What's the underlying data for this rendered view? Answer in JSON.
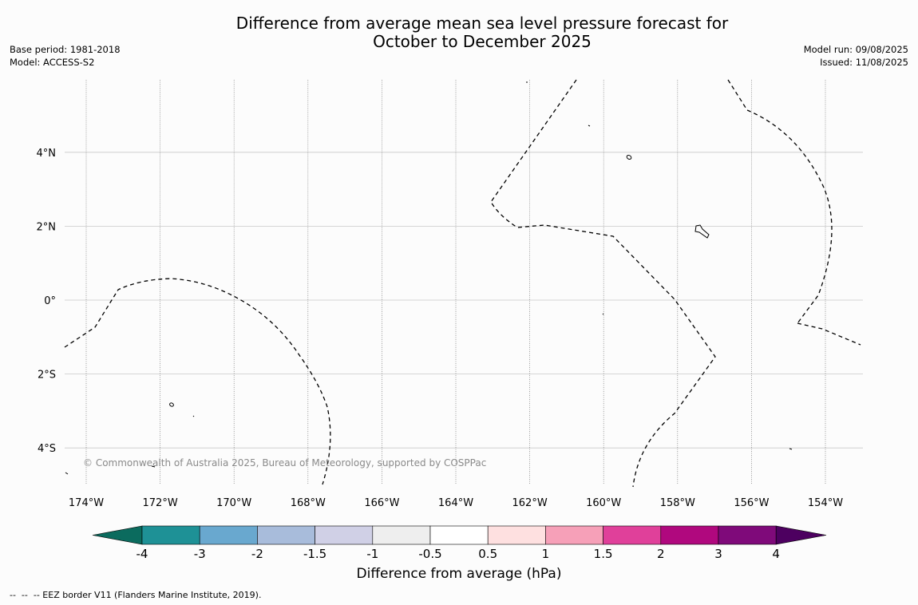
{
  "title": {
    "line1": "Difference from average mean sea level pressure forecast for",
    "line2": "October to December 2025"
  },
  "meta": {
    "base_period": "Base period: 1981-2018",
    "model": "Model: ACCESS-S2",
    "model_run": "Model run: 09/08/2025",
    "issued": "Issued: 11/08/2025"
  },
  "map": {
    "longitude_ticks": [
      {
        "value": -174,
        "label": "174°W"
      },
      {
        "value": -172,
        "label": "172°W"
      },
      {
        "value": -170,
        "label": "170°W"
      },
      {
        "value": -168,
        "label": "168°W"
      },
      {
        "value": -166,
        "label": "166°W"
      },
      {
        "value": -164,
        "label": "164°W"
      },
      {
        "value": -162,
        "label": "162°W"
      },
      {
        "value": -160,
        "label": "160°W"
      },
      {
        "value": -158,
        "label": "158°W"
      },
      {
        "value": -156,
        "label": "156°W"
      },
      {
        "value": -154,
        "label": "154°W"
      }
    ],
    "latitude_ticks": [
      {
        "value": 4,
        "label": "4°N"
      },
      {
        "value": 2,
        "label": "2°N"
      },
      {
        "value": 0,
        "label": "0°"
      },
      {
        "value": -2,
        "label": "2°S"
      },
      {
        "value": -4,
        "label": "4°S"
      }
    ],
    "copyright": "© Commonwealth of Australia 2025, Bureau of Meteorology, supported by COSPPac",
    "shading": "white (-0.5 to 0.5) across entire map",
    "grid_color": "#c8c8c8",
    "meridian_style": "dotted"
  },
  "colorbar": {
    "title": "Difference from average (hPa)",
    "colors": [
      "#0b6b5e",
      "#1e9196",
      "#69a8cf",
      "#a8bcdb",
      "#d0d0e6",
      "#eeeeee",
      "#ffffff",
      "#fee0e0",
      "#f6a0b8",
      "#e0409a",
      "#b0087e",
      "#7f0a7a",
      "#4d0060"
    ],
    "labels": [
      "-4",
      "-3",
      "-2",
      "-1.5",
      "-1",
      "-0.5",
      "0.5",
      "1",
      "1.5",
      "2",
      "3",
      "4"
    ]
  },
  "footer": "--  --  -- EEZ border V11 (Flanders Marine Institute, 2019)."
}
